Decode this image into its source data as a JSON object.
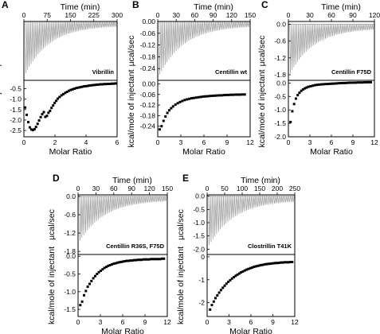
{
  "figure": {
    "panels": [
      {
        "letter": "A",
        "name": "Vibrillin"
      },
      {
        "letter": "B",
        "name": "Centillin wt"
      },
      {
        "letter": "C",
        "name": "Centillin F75D"
      },
      {
        "letter": "D",
        "name": "Centillin R36S, F75D"
      },
      {
        "letter": "E",
        "name": "Clostrillin T41K"
      }
    ],
    "top_axis_label": "Time (min)",
    "upper_ylabel": "µcal/sec",
    "lower_ylabel": "kcal/mole of injectant",
    "xlabel": "Molar Ratio"
  },
  "colors": {
    "raw_trace": "#9a9a9a",
    "points": "#000000",
    "axes": "#000000"
  },
  "chart_data": [
    {
      "panel": "A",
      "type": "scatter",
      "series_name": "Vibrillin",
      "time": {
        "xlim": [
          0,
          300
        ],
        "ticks": [
          0,
          75,
          150,
          225,
          300
        ],
        "n_injections": 52
      },
      "raw": {
        "ylim": [
          -2.5,
          0
        ],
        "tick_labels": [],
        "min_peak": -2.2
      },
      "integrated": {
        "xlim": [
          0,
          6
        ],
        "x_ticks": [
          0,
          2,
          4,
          6
        ],
        "ylim": [
          -2.8,
          -0.1
        ],
        "y_ticks": [
          -0.5,
          -1.0,
          -1.5,
          -2.0,
          -2.5
        ],
        "x": [
          0.08,
          0.18,
          0.28,
          0.38,
          0.48,
          0.58,
          0.68,
          0.78,
          0.88,
          0.98,
          1.08,
          1.18,
          1.28,
          1.38,
          1.48,
          1.58,
          1.68,
          1.78,
          1.88,
          1.98,
          2.08,
          2.18,
          2.3,
          2.42,
          2.54,
          2.66,
          2.78,
          2.9,
          3.02,
          3.14,
          3.26,
          3.38,
          3.5,
          3.62,
          3.74,
          3.86,
          3.98,
          4.1,
          4.22,
          4.34,
          4.46,
          4.58,
          4.7,
          4.82,
          4.94,
          5.06,
          5.18,
          5.3,
          5.42,
          5.54,
          5.66,
          5.78,
          5.9
        ],
        "y": [
          -1.4,
          -1.75,
          -2.1,
          -2.35,
          -2.45,
          -2.48,
          -2.44,
          -2.33,
          -2.18,
          -2.02,
          -1.86,
          -1.72,
          -1.62,
          -1.85,
          -1.8,
          -1.65,
          -1.56,
          -1.42,
          -1.3,
          -1.18,
          -1.08,
          -0.98,
          -0.9,
          -0.82,
          -0.76,
          -0.7,
          -0.65,
          -0.6,
          -0.56,
          -0.53,
          -0.5,
          -0.47,
          -0.45,
          -0.43,
          -0.41,
          -0.39,
          -0.38,
          -0.37,
          -0.35,
          -0.34,
          -0.33,
          -0.32,
          -0.31,
          -0.3,
          -0.29,
          -0.29,
          -0.28,
          -0.28,
          -0.27,
          -0.27,
          -0.26,
          -0.26,
          -0.25
        ]
      }
    },
    {
      "panel": "B",
      "type": "scatter",
      "series_name": "Centillin wt",
      "time": {
        "xlim": [
          0,
          150
        ],
        "ticks": [
          0,
          30,
          60,
          90,
          120,
          150
        ],
        "n_injections": 50
      },
      "raw": {
        "ylim": [
          -0.3,
          0
        ],
        "tick_labels": [
          "0.00",
          "-0.06",
          "-0.12",
          "-0.18",
          "-0.24"
        ],
        "min_peak": -0.27
      },
      "integrated": {
        "xlim": [
          0,
          12
        ],
        "x_ticks": [
          0,
          3,
          6,
          9,
          12
        ],
        "ylim": [
          -0.3,
          0.02
        ],
        "y_ticks": [
          0.0,
          -0.06,
          -0.12,
          -0.18,
          -0.24
        ],
        "x": [
          0.25,
          0.5,
          0.75,
          1.0,
          1.25,
          1.5,
          1.75,
          2.0,
          2.3,
          2.6,
          2.9,
          3.2,
          3.5,
          3.8,
          4.1,
          4.4,
          4.7,
          5.0,
          5.3,
          5.6,
          5.9,
          6.2,
          6.5,
          6.8,
          7.1,
          7.4,
          7.7,
          8.0,
          8.3,
          8.6,
          8.9,
          9.2,
          9.5,
          9.8,
          10.1,
          10.4,
          10.7,
          11.0,
          11.3
        ],
        "y": [
          -0.258,
          -0.24,
          -0.21,
          -0.185,
          -0.165,
          -0.15,
          -0.138,
          -0.128,
          -0.118,
          -0.11,
          -0.103,
          -0.097,
          -0.092,
          -0.088,
          -0.085,
          -0.082,
          -0.08,
          -0.078,
          -0.076,
          -0.074,
          -0.072,
          -0.071,
          -0.07,
          -0.069,
          -0.068,
          -0.067,
          -0.066,
          -0.065,
          -0.065,
          -0.064,
          -0.063,
          -0.063,
          -0.062,
          -0.062,
          -0.061,
          -0.061,
          -0.061,
          -0.06,
          -0.06
        ]
      }
    },
    {
      "panel": "C",
      "type": "scatter",
      "series_name": "Centillin F75D",
      "time": {
        "xlim": [
          0,
          120
        ],
        "ticks": [
          0,
          30,
          60,
          90,
          120
        ],
        "n_injections": 48
      },
      "raw": {
        "ylim": [
          -2.0,
          0.1
        ],
        "tick_labels": [
          "0.0",
          "-0.6",
          "-1.2",
          "-1.8"
        ],
        "min_peak": -1.75
      },
      "integrated": {
        "xlim": [
          0,
          12
        ],
        "x_ticks": [
          0,
          3,
          6,
          9,
          12
        ],
        "ylim": [
          -2.0,
          0.1
        ],
        "y_ticks": [
          0.0,
          -0.5,
          -1.0,
          -1.5,
          -2.0
        ],
        "x": [
          0.3,
          0.55,
          0.8,
          1.05,
          1.3,
          1.55,
          1.8,
          2.05,
          2.3,
          2.55,
          2.8,
          3.1,
          3.4,
          3.7,
          4.0,
          4.3,
          4.6,
          4.9,
          5.2,
          5.5,
          5.8,
          6.1,
          6.4,
          6.7,
          7.0,
          7.3,
          7.6,
          7.9,
          8.2,
          8.5,
          8.8,
          9.1,
          9.4,
          9.7,
          10.0,
          10.3,
          10.6,
          10.9,
          11.2,
          11.5
        ],
        "y": [
          -1.45,
          -1.05,
          -0.78,
          -0.58,
          -0.45,
          -0.36,
          -0.29,
          -0.24,
          -0.2,
          -0.17,
          -0.14,
          -0.12,
          -0.1,
          -0.08,
          -0.07,
          -0.06,
          -0.05,
          -0.045,
          -0.04,
          -0.035,
          -0.03,
          -0.025,
          -0.02,
          -0.015,
          -0.01,
          -0.005,
          0.0,
          0.0,
          0.005,
          0.01,
          0.01,
          0.015,
          0.015,
          0.02,
          0.02,
          0.02,
          0.025,
          0.025,
          0.03,
          0.03
        ]
      }
    },
    {
      "panel": "D",
      "type": "scatter",
      "series_name": "Centillin R36S, F75D",
      "time": {
        "xlim": [
          0,
          150
        ],
        "ticks": [
          0,
          30,
          60,
          90,
          120,
          150
        ],
        "n_injections": 48
      },
      "raw": {
        "ylim": [
          -1.9,
          0.05
        ],
        "tick_labels": [
          "0.0",
          "-0.6",
          "-1.2",
          "-1.8"
        ],
        "min_peak": -1.45
      },
      "integrated": {
        "xlim": [
          0,
          12
        ],
        "x_ticks": [
          0,
          3,
          6,
          9,
          12
        ],
        "ylim": [
          -1.7,
          0.05
        ],
        "y_ticks": [
          0.0,
          -0.5,
          -1.0,
          -1.5
        ],
        "x": [
          0.3,
          0.55,
          0.8,
          1.05,
          1.3,
          1.55,
          1.8,
          2.05,
          2.3,
          2.55,
          2.8,
          3.05,
          3.3,
          3.55,
          3.8,
          4.05,
          4.3,
          4.55,
          4.8,
          5.05,
          5.3,
          5.55,
          5.8,
          6.05,
          6.3,
          6.55,
          6.8,
          7.05,
          7.3,
          7.55,
          7.8,
          8.05,
          8.3,
          8.55,
          8.8,
          9.05,
          9.3,
          9.55,
          9.8,
          10.05,
          10.3,
          10.55,
          10.8,
          11.05,
          11.3,
          11.55
        ],
        "y": [
          -1.38,
          -1.28,
          -1.1,
          -0.98,
          -0.86,
          -0.78,
          -0.7,
          -0.62,
          -0.56,
          -0.5,
          -0.45,
          -0.41,
          -0.37,
          -0.33,
          -0.3,
          -0.27,
          -0.25,
          -0.23,
          -0.21,
          -0.2,
          -0.18,
          -0.17,
          -0.16,
          -0.15,
          -0.14,
          -0.13,
          -0.13,
          -0.12,
          -0.12,
          -0.11,
          -0.11,
          -0.1,
          -0.1,
          -0.1,
          -0.09,
          -0.09,
          -0.09,
          -0.09,
          -0.08,
          -0.08,
          -0.08,
          -0.08,
          -0.08,
          -0.08,
          -0.07,
          -0.07
        ]
      }
    },
    {
      "panel": "E",
      "type": "scatter",
      "series_name": "Clostrillin T41K",
      "time": {
        "xlim": [
          0,
          250
        ],
        "ticks": [
          0,
          50,
          100,
          150,
          200,
          250
        ],
        "n_injections": 46
      },
      "raw": {
        "ylim": [
          -2.2,
          0.05
        ],
        "tick_labels": [
          "0.0",
          "-0.5",
          "-1.0",
          "-1.5",
          "-2.0"
        ],
        "min_peak": -1.85
      },
      "integrated": {
        "xlim": [
          0,
          12
        ],
        "x_ticks": [
          0,
          3,
          6,
          9,
          12
        ],
        "ylim": [
          -2.6,
          0.1
        ],
        "y_ticks": [
          0,
          -1,
          -2
        ],
        "x": [
          0.4,
          0.65,
          0.9,
          1.15,
          1.4,
          1.65,
          1.9,
          2.15,
          2.4,
          2.65,
          2.9,
          3.15,
          3.4,
          3.65,
          3.9,
          4.15,
          4.4,
          4.65,
          4.9,
          5.15,
          5.4,
          5.65,
          5.9,
          6.15,
          6.4,
          6.65,
          6.9,
          7.15,
          7.4,
          7.65,
          7.9,
          8.15,
          8.4,
          8.65,
          8.9,
          9.15,
          9.4,
          9.65,
          9.9,
          10.15,
          10.4,
          10.65,
          10.9,
          11.15,
          11.4,
          11.65
        ],
        "y": [
          -2.3,
          -2.1,
          -1.95,
          -1.8,
          -1.68,
          -1.56,
          -1.45,
          -1.35,
          -1.26,
          -1.17,
          -1.09,
          -1.02,
          -0.95,
          -0.89,
          -0.83,
          -0.78,
          -0.73,
          -0.68,
          -0.64,
          -0.6,
          -0.56,
          -0.53,
          -0.5,
          -0.47,
          -0.44,
          -0.42,
          -0.4,
          -0.38,
          -0.36,
          -0.35,
          -0.33,
          -0.32,
          -0.31,
          -0.3,
          -0.29,
          -0.28,
          -0.27,
          -0.27,
          -0.26,
          -0.25,
          -0.25,
          -0.24,
          -0.24,
          -0.24,
          -0.23,
          -0.23
        ]
      }
    }
  ]
}
